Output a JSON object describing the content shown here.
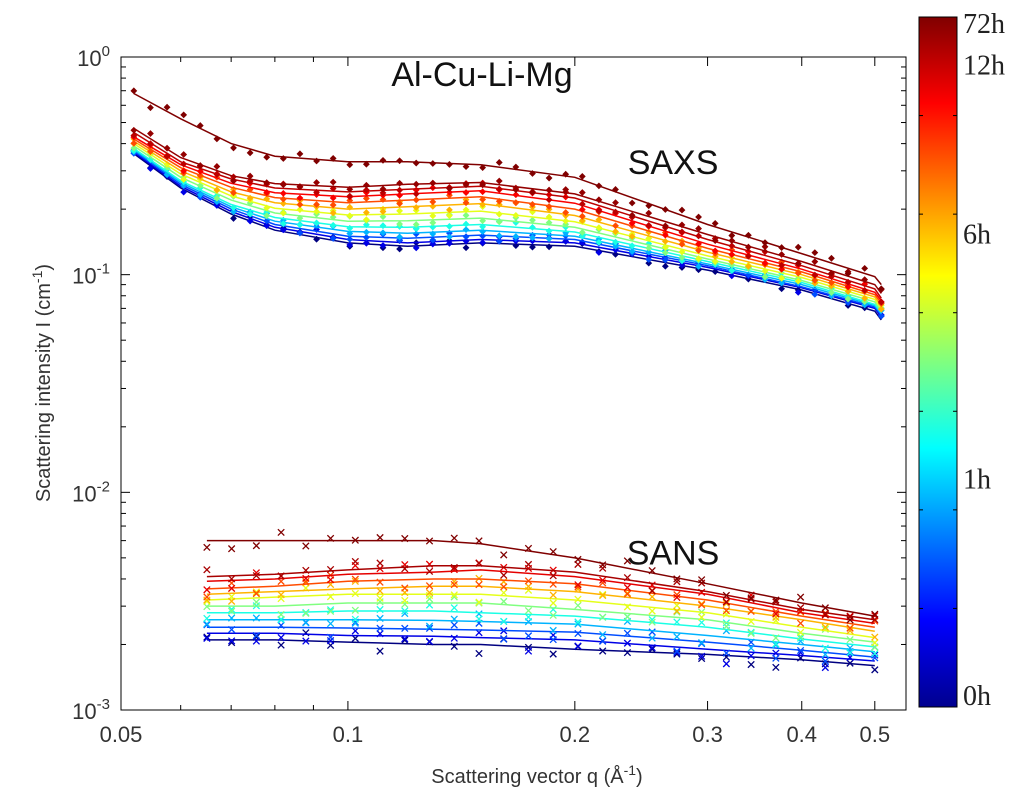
{
  "chart_data": {
    "type": "scatter",
    "title": "Al-Cu-Li-Mg",
    "xlabel": "Scattering vector q (Å⁻¹)",
    "xlabel_parts": {
      "main": "Scattering vector q (Å",
      "sup": "-1",
      "close": ")"
    },
    "ylabel": "Scattering intensity I (cm⁻¹)",
    "ylabel_parts": {
      "main": "Scattering intensity I (cm",
      "sup": "-1",
      "close": ")"
    },
    "xscale": "log",
    "yscale": "log",
    "xlim": [
      0.05,
      0.55
    ],
    "ylim": [
      0.001,
      1
    ],
    "x_ticks": [
      {
        "v": 0.05,
        "label": "0.05"
      },
      {
        "v": 0.1,
        "label": "0.1"
      },
      {
        "v": 0.2,
        "label": "0.2"
      },
      {
        "v": 0.3,
        "label": "0.3"
      },
      {
        "v": 0.4,
        "label": "0.4"
      },
      {
        "v": 0.5,
        "label": "0.5"
      }
    ],
    "y_ticks": [
      {
        "v": 1,
        "base": "10",
        "exp": "0"
      },
      {
        "v": 0.1,
        "base": "10",
        "exp": "-1"
      },
      {
        "v": 0.01,
        "base": "10",
        "exp": "-2"
      },
      {
        "v": 0.001,
        "base": "10",
        "exp": "-3"
      }
    ],
    "grid": false,
    "annotations": [
      {
        "text": "SAXS",
        "x": 0.27,
        "y": 0.33
      },
      {
        "text": "SANS",
        "x": 0.27,
        "y": 0.0053
      }
    ],
    "colorbar": {
      "colormap": "jet",
      "labels": [
        {
          "text": "72h",
          "frac": 1.0
        },
        {
          "text": "12h",
          "frac": 0.93
        },
        {
          "text": "6h",
          "frac": 0.685
        },
        {
          "text": "1h",
          "frac": 0.33
        },
        {
          "text": "0h",
          "frac": 0.0
        }
      ]
    },
    "series": [
      {
        "group": "SAXS",
        "marker": "diamond",
        "x": [
          0.052,
          0.06,
          0.07,
          0.08,
          0.1,
          0.12,
          0.15,
          0.2,
          0.3,
          0.4,
          0.5,
          0.51
        ],
        "curves": [
          {
            "t": 0.0,
            "y": [
              0.36,
              0.25,
              0.19,
              0.16,
              0.14,
              0.135,
              0.14,
              0.135,
              0.105,
              0.085,
              0.068,
              0.062
            ]
          },
          {
            "t": 0.1,
            "y": [
              0.365,
              0.255,
              0.195,
              0.165,
              0.145,
              0.14,
              0.145,
              0.14,
              0.108,
              0.087,
              0.07,
              0.064
            ]
          },
          {
            "t": 0.2,
            "y": [
              0.37,
              0.26,
              0.2,
              0.17,
              0.15,
              0.147,
              0.152,
              0.145,
              0.11,
              0.088,
              0.071,
              0.065
            ]
          },
          {
            "t": 0.3,
            "y": [
              0.375,
              0.265,
              0.205,
              0.176,
              0.158,
              0.155,
              0.16,
              0.15,
              0.112,
              0.09,
              0.072,
              0.066
            ]
          },
          {
            "t": 0.4,
            "y": [
              0.38,
              0.27,
              0.21,
              0.183,
              0.166,
              0.165,
              0.17,
              0.157,
              0.115,
              0.092,
              0.073,
              0.067
            ]
          },
          {
            "t": 0.5,
            "y": [
              0.39,
              0.28,
              0.22,
              0.192,
              0.176,
              0.177,
              0.182,
              0.165,
              0.118,
              0.094,
              0.075,
              0.068
            ]
          },
          {
            "t": 0.6,
            "y": [
              0.4,
              0.29,
              0.23,
              0.202,
              0.188,
              0.19,
              0.196,
              0.175,
              0.122,
              0.097,
              0.077,
              0.07
            ]
          },
          {
            "t": 0.7,
            "y": [
              0.41,
              0.3,
              0.24,
              0.214,
              0.2,
              0.205,
              0.212,
              0.187,
              0.127,
              0.1,
              0.079,
              0.072
            ]
          },
          {
            "t": 0.8,
            "y": [
              0.42,
              0.31,
              0.252,
              0.226,
              0.214,
              0.22,
              0.228,
              0.2,
              0.132,
              0.103,
              0.081,
              0.074
            ]
          },
          {
            "t": 0.88,
            "y": [
              0.43,
              0.32,
              0.263,
              0.238,
              0.228,
              0.235,
              0.243,
              0.213,
              0.138,
              0.106,
              0.083,
              0.076
            ]
          },
          {
            "t": 0.94,
            "y": [
              0.45,
              0.33,
              0.275,
              0.25,
              0.24,
              0.247,
              0.255,
              0.225,
              0.145,
              0.11,
              0.086,
              0.078
            ]
          },
          {
            "t": 0.98,
            "y": [
              0.47,
              0.345,
              0.285,
              0.262,
              0.252,
              0.26,
              0.265,
              0.235,
              0.153,
              0.115,
              0.09,
              0.082
            ]
          },
          {
            "t": 1.0,
            "y": [
              0.68,
              0.52,
              0.4,
              0.35,
              0.33,
              0.33,
              0.32,
              0.28,
              0.17,
              0.125,
              0.098,
              0.09
            ]
          }
        ]
      },
      {
        "group": "SANS",
        "marker": "x",
        "x": [
          0.065,
          0.08,
          0.1,
          0.13,
          0.15,
          0.2,
          0.3,
          0.4,
          0.5
        ],
        "curves": [
          {
            "t": 0.0,
            "y": [
              0.0021,
              0.0021,
              0.00205,
              0.002,
              0.002,
              0.0019,
              0.0018,
              0.0017,
              0.0016
            ]
          },
          {
            "t": 0.1,
            "y": [
              0.00225,
              0.00225,
              0.0022,
              0.00218,
              0.00215,
              0.0021,
              0.0019,
              0.00178,
              0.00168
            ]
          },
          {
            "t": 0.2,
            "y": [
              0.0024,
              0.0024,
              0.00238,
              0.00235,
              0.00233,
              0.00228,
              0.00205,
              0.00188,
              0.00175
            ]
          },
          {
            "t": 0.3,
            "y": [
              0.0026,
              0.0026,
              0.0026,
              0.00258,
              0.00255,
              0.00248,
              0.0022,
              0.002,
              0.00185
            ]
          },
          {
            "t": 0.4,
            "y": [
              0.0028,
              0.0028,
              0.00285,
              0.00285,
              0.0028,
              0.0027,
              0.0024,
              0.00212,
              0.00195
            ]
          },
          {
            "t": 0.5,
            "y": [
              0.003,
              0.003,
              0.0031,
              0.0031,
              0.0031,
              0.0029,
              0.0026,
              0.00225,
              0.00205
            ]
          },
          {
            "t": 0.6,
            "y": [
              0.0032,
              0.0033,
              0.0034,
              0.0034,
              0.0034,
              0.0032,
              0.0028,
              0.0024,
              0.00215
            ]
          },
          {
            "t": 0.7,
            "y": [
              0.0034,
              0.0035,
              0.0036,
              0.0037,
              0.0037,
              0.0035,
              0.003,
              0.0026,
              0.0023
            ]
          },
          {
            "t": 0.8,
            "y": [
              0.0036,
              0.0037,
              0.0039,
              0.004,
              0.004,
              0.0038,
              0.0032,
              0.0027,
              0.0024
            ]
          },
          {
            "t": 0.9,
            "y": [
              0.0039,
              0.004,
              0.0042,
              0.0043,
              0.0044,
              0.0041,
              0.0034,
              0.0028,
              0.0025
            ]
          },
          {
            "t": 0.96,
            "y": [
              0.0041,
              0.0042,
              0.0044,
              0.0046,
              0.0046,
              0.0043,
              0.0035,
              0.0029,
              0.0026
            ]
          },
          {
            "t": 1.0,
            "y": [
              0.006,
              0.006,
              0.006,
              0.006,
              0.0058,
              0.005,
              0.0038,
              0.0031,
              0.0027
            ]
          }
        ]
      }
    ]
  }
}
